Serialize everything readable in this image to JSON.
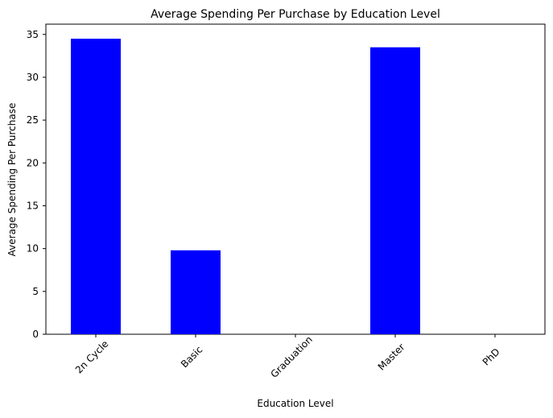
{
  "chart_data": {
    "type": "bar",
    "title": "Average Spending Per Purchase by Education Level",
    "xlabel": "Education Level",
    "ylabel": "Average Spending Per Purchase",
    "categories": [
      "2n Cycle",
      "Basic",
      "Graduation",
      "Master",
      "PhD"
    ],
    "values": [
      34.5,
      9.8,
      0,
      33.5,
      0
    ],
    "ylim": [
      0,
      36.2
    ],
    "yticks": [
      0,
      5,
      10,
      15,
      20,
      25,
      30,
      35
    ],
    "ytick_labels": [
      "0",
      "5",
      "10",
      "15",
      "20",
      "25",
      "30",
      "35"
    ],
    "bar_color": "#0000ff",
    "grid": false,
    "legend": false
  }
}
